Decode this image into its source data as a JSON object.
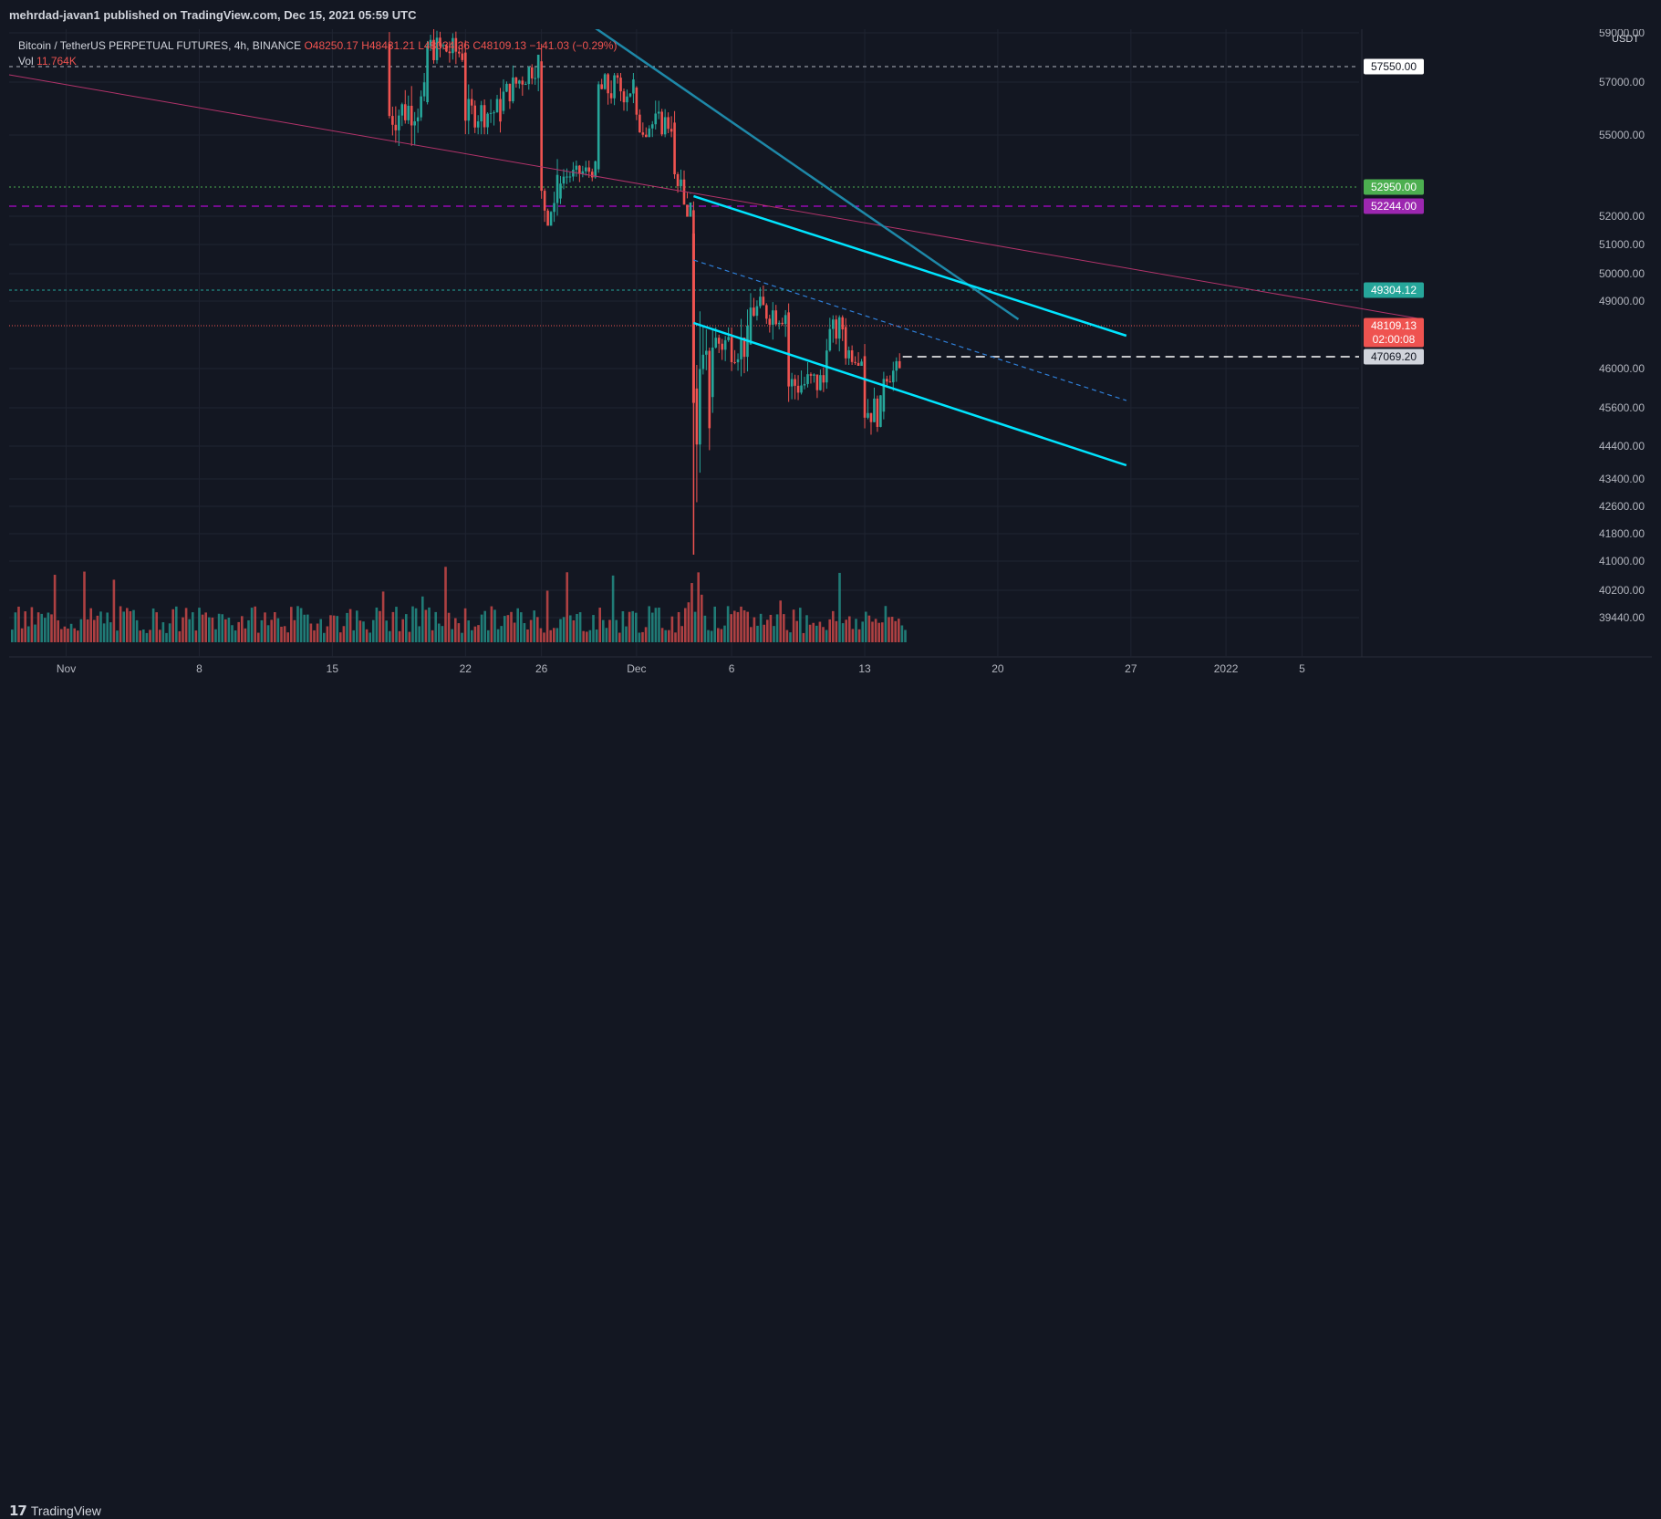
{
  "header": {
    "published": "mehrdad-javan1 published on TradingView.com, Dec 15, 2021 05:59 UTC"
  },
  "legend": {
    "symbol": "Bitcoin / TetherUS PERPETUAL FUTURES, 4h, BINANCE",
    "open": "O48250.17",
    "high": "H48431.21",
    "low": "L48034.36",
    "close": "C48109.13",
    "change": "−141.03 (−0.29%)",
    "vol_label": "Vol",
    "vol_value": "11.764K"
  },
  "footer": {
    "brand": "TradingView",
    "brand_mark": "𝟭𝟳"
  },
  "currency": "USDT",
  "colors": {
    "bull": "#26a69a",
    "bear": "#ef5350",
    "channel": "#00e5ff",
    "trend": "#1e88a8",
    "long_trend": "#b2336a",
    "grid": "#1f2431",
    "magenta": "#d500f9",
    "green_level": "#4caf50"
  },
  "chart_data": {
    "type": "candlestick",
    "symbol": "BTCUSDT.P",
    "timeframe": "4h",
    "x_tick_labels": [
      "Nov",
      "8",
      "15",
      "22",
      "26",
      "Dec",
      "6",
      "13",
      "20",
      "27",
      "2022",
      "5"
    ],
    "x_tick_dates": [
      "2021-11-01",
      "2021-11-08",
      "2021-11-15",
      "2021-11-22",
      "2021-11-26",
      "2021-12-01",
      "2021-12-06",
      "2021-12-13",
      "2021-12-20",
      "2021-12-27",
      "2022-01-01",
      "2022-01-05"
    ],
    "y_tick_labels": [
      "59000.00",
      "57000.00",
      "55000.00",
      "52000.00",
      "51000.00",
      "50000.00",
      "49000.00",
      "46000.00",
      "45600.00",
      "44400.00",
      "43400.00",
      "42600.00",
      "41800.00",
      "41000.00",
      "40200.00",
      "39440.00"
    ],
    "price_badges": [
      {
        "label": "57550.00",
        "type": "level",
        "color": "#ffffff"
      },
      {
        "label": "52950.00",
        "type": "level",
        "color": "#4caf50"
      },
      {
        "label": "52244.00",
        "type": "level",
        "color": "#9c27b0"
      },
      {
        "label": "49304.12",
        "type": "level",
        "color": "#26a69a"
      },
      {
        "label": "48109.13",
        "sublabel": "02:00:08",
        "type": "last",
        "color": "#ef5350"
      },
      {
        "label": "47069.20",
        "type": "level",
        "color": "#d1d4dc"
      }
    ],
    "series": [
      {
        "name": "BTCUSDT 4h",
        "candles": [
          [
            "2021-11-18",
            59500,
            60200,
            56200,
            57000
          ],
          [
            "2021-11-20",
            57500,
            59800,
            57000,
            59400
          ],
          [
            "2021-11-22",
            59200,
            59600,
            56600,
            57100
          ],
          [
            "2021-11-24",
            57200,
            58600,
            55900,
            57600
          ],
          [
            "2021-11-26",
            58900,
            59300,
            53600,
            54000
          ],
          [
            "2021-11-27",
            54200,
            55300,
            53700,
            54900
          ],
          [
            "2021-11-29",
            55200,
            58300,
            55000,
            57900
          ],
          [
            "2021-12-01",
            58000,
            59100,
            56500,
            56700
          ],
          [
            "2021-12-03",
            56800,
            57700,
            54600,
            54900
          ],
          [
            "2021-12-04",
            53800,
            53900,
            42000,
            47200
          ],
          [
            "2021-12-05",
            47400,
            50200,
            46500,
            49300
          ],
          [
            "2021-12-07",
            49200,
            51600,
            48600,
            50400
          ],
          [
            "2021-12-09",
            50300,
            50700,
            47400,
            47800
          ],
          [
            "2021-12-11",
            47900,
            50000,
            47200,
            49400
          ],
          [
            "2021-12-12",
            49800,
            50800,
            48700,
            49000
          ],
          [
            "2021-12-13",
            48800,
            49300,
            46100,
            47000
          ],
          [
            "2021-12-14",
            46900,
            48700,
            46300,
            48250
          ],
          [
            "2021-12-15",
            48250,
            48431.21,
            48034.36,
            48109.13
          ]
        ]
      }
    ],
    "volume_unit": "K",
    "last_price": 48109.13
  }
}
